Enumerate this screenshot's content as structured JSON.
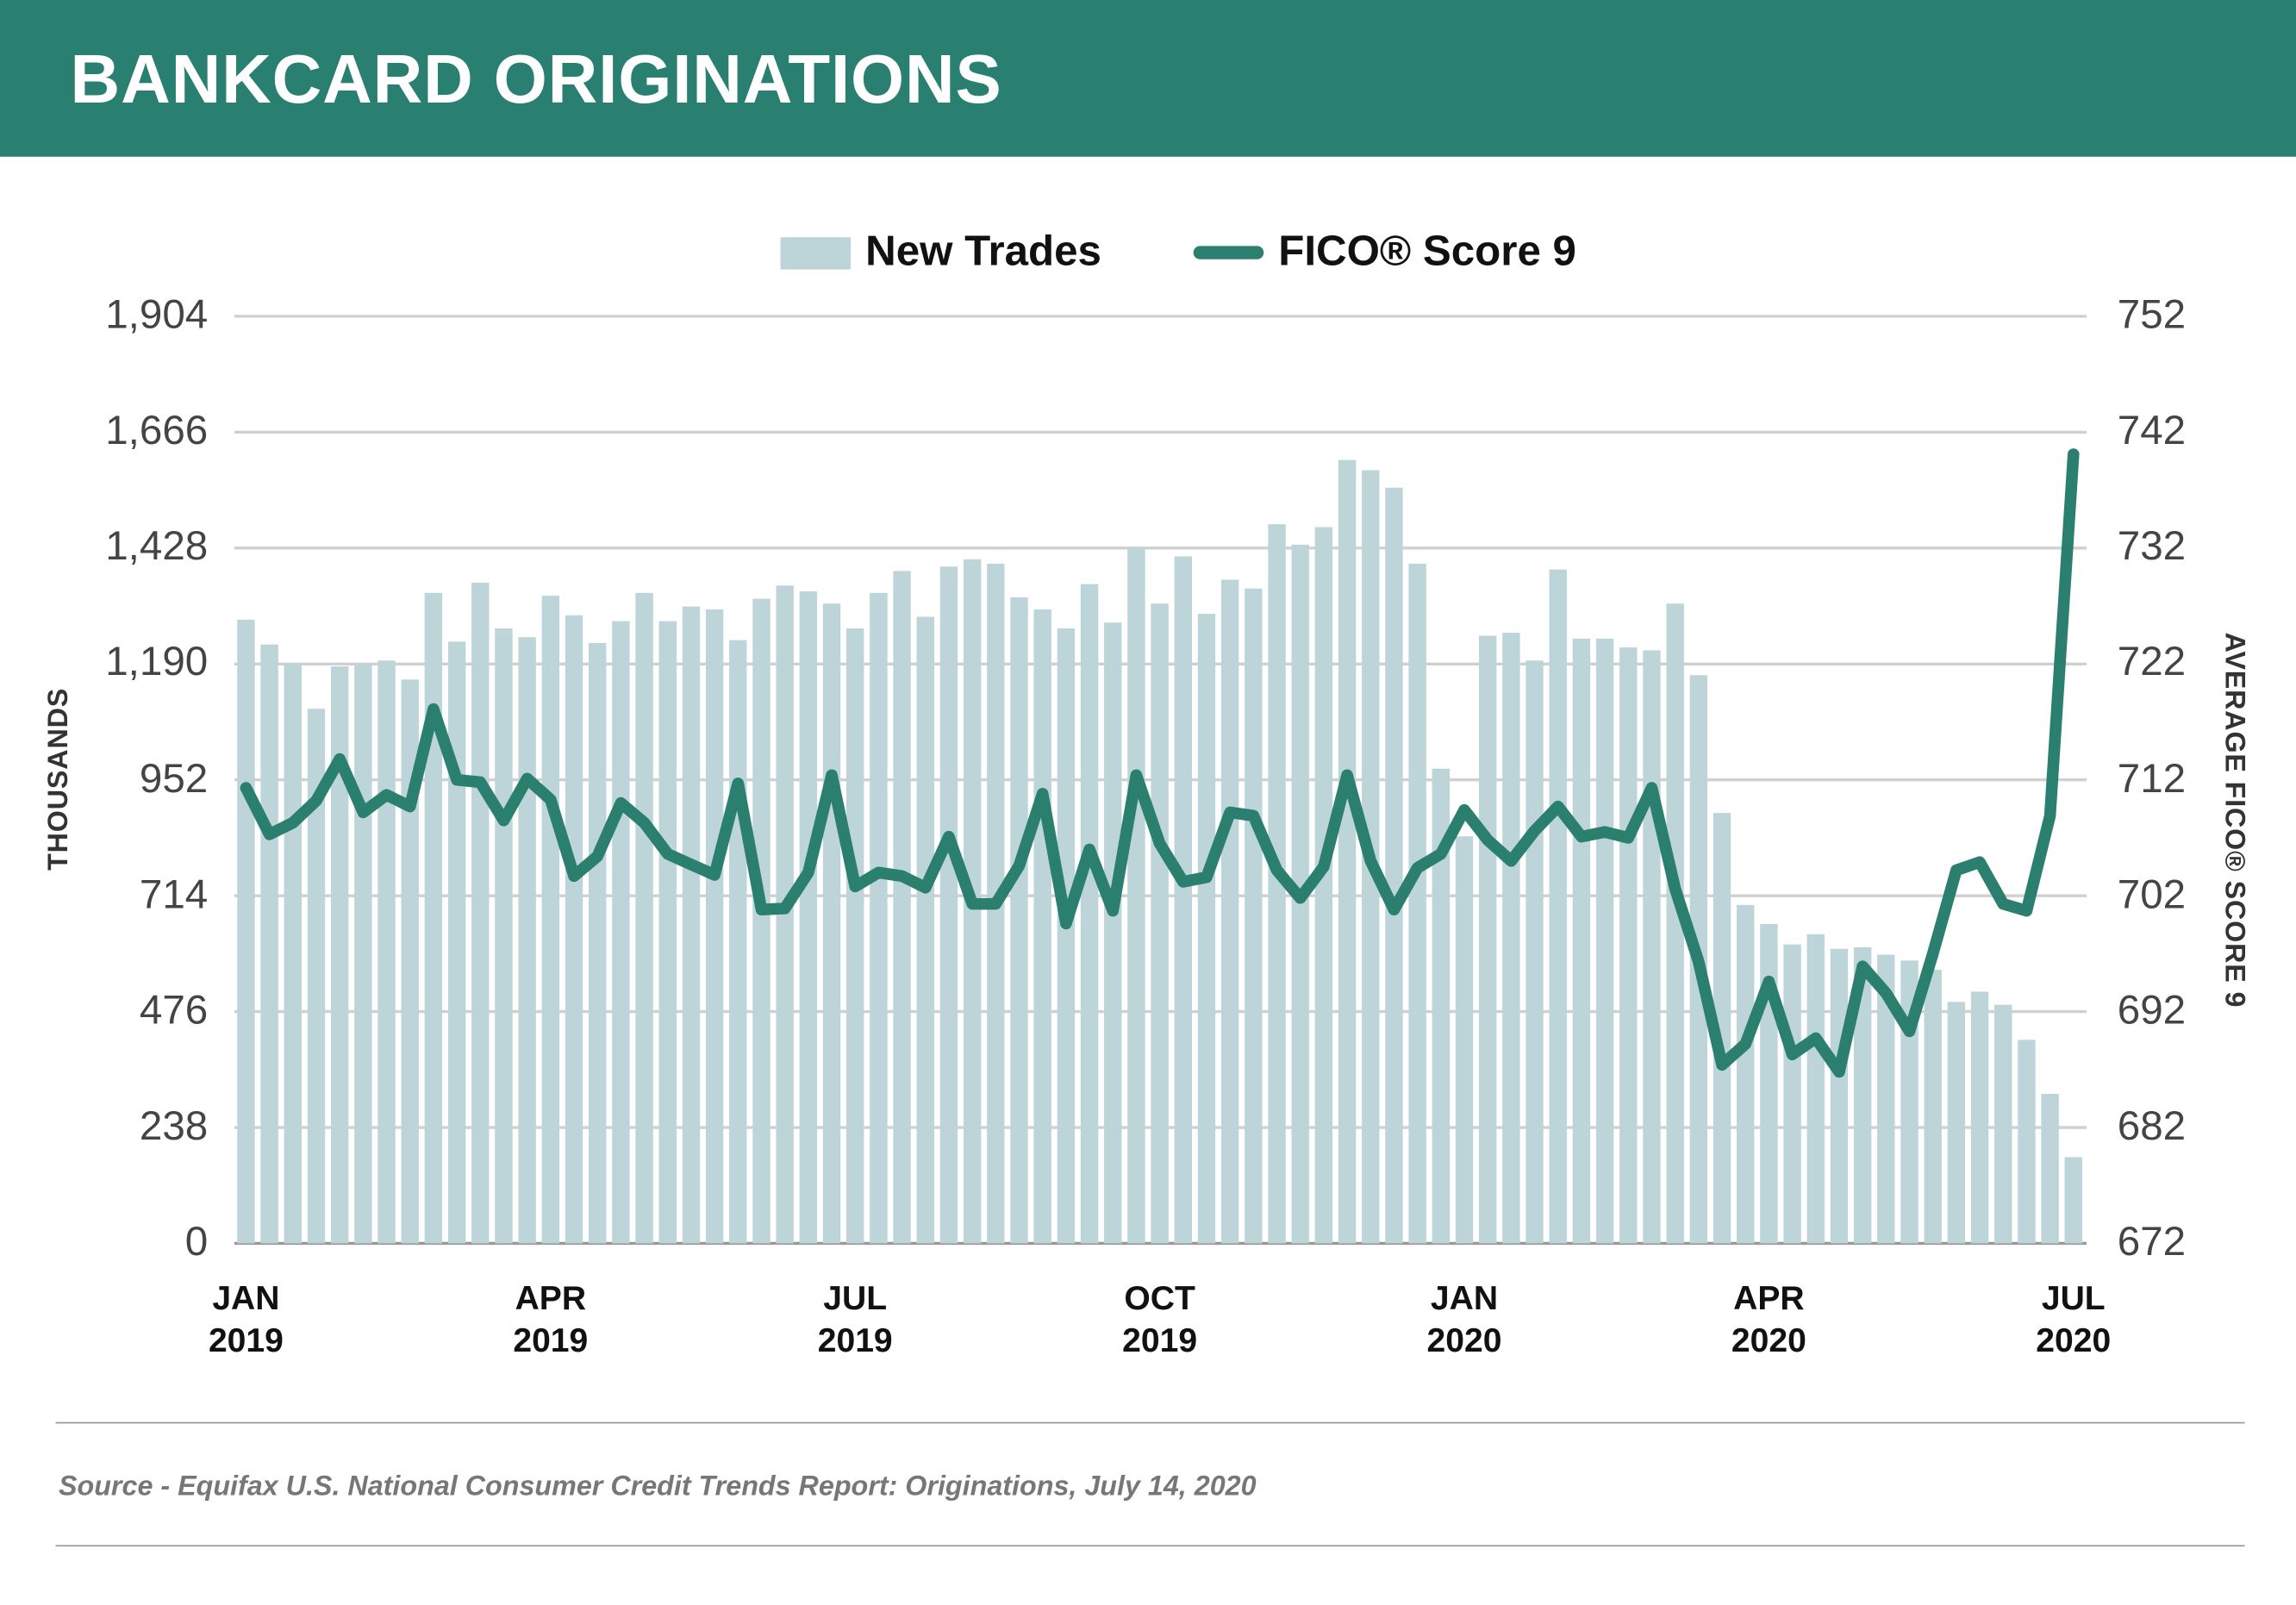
{
  "header": {
    "title": "BANKCARD ORIGINATIONS"
  },
  "footer": {
    "source": "Source - Equifax U.S. National Consumer Credit Trends Report: Originations, July 14, 2020"
  },
  "colors": {
    "header": "#2a8070",
    "bars": "#bdd4d8",
    "line": "#2a7f6f",
    "grid": "#d0d0d0"
  },
  "chart_data": {
    "type": "bar+line",
    "title": "BANKCARD ORIGINATIONS",
    "legend": {
      "placement": "top-center",
      "entries": [
        "New Trades",
        "FICO® Score 9"
      ]
    },
    "ylabel_left": "THOUSANDS",
    "ylabel_right": "AVERAGE FICO® SCORE 9",
    "ylim_left": [
      0,
      1904
    ],
    "ylim_right": [
      672,
      752
    ],
    "yticks_left": [
      "0",
      "238",
      "476",
      "714",
      "952",
      "1,190",
      "1,428",
      "1,666",
      "1,904"
    ],
    "yticks_right": [
      "672",
      "682",
      "692",
      "702",
      "712",
      "722",
      "732",
      "742",
      "752"
    ],
    "xticks": [
      {
        "month": "JAN",
        "year": "2019",
        "index": 0
      },
      {
        "month": "APR",
        "year": "2019",
        "index": 13
      },
      {
        "month": "JUL",
        "year": "2019",
        "index": 26
      },
      {
        "month": "OCT",
        "year": "2019",
        "index": 39
      },
      {
        "month": "JAN",
        "year": "2020",
        "index": 52
      },
      {
        "month": "APR",
        "year": "2020",
        "index": 65
      },
      {
        "month": "JUL",
        "year": "2020",
        "index": 78
      }
    ],
    "grid": true,
    "series": [
      {
        "name": "New Trades",
        "type": "bar",
        "axis": "left",
        "values": [
          1281,
          1230,
          1191,
          1098,
          1185,
          1191,
          1197,
          1158,
          1336,
          1236,
          1357,
          1263,
          1245,
          1330,
          1290,
          1233,
          1278,
          1336,
          1278,
          1308,
          1302,
          1239,
          1324,
          1351,
          1339,
          1314,
          1263,
          1336,
          1381,
          1287,
          1390,
          1405,
          1396,
          1327,
          1302,
          1263,
          1354,
          1275,
          1429,
          1314,
          1411,
          1293,
          1363,
          1345,
          1477,
          1435,
          1471,
          1609,
          1588,
          1552,
          1396,
          975,
          836,
          1248,
          1254,
          1197,
          1384,
          1242,
          1242,
          1224,
          1218,
          1314,
          1167,
          884,
          695,
          656,
          614,
          635,
          605,
          608,
          593,
          581,
          562,
          496,
          517,
          490,
          418,
          307,
          177
        ]
      },
      {
        "name": "FICO® Score 9",
        "type": "line",
        "axis": "right",
        "values": [
          711.3,
          707.3,
          708.3,
          710.2,
          713.8,
          709.2,
          710.7,
          709.7,
          718.1,
          712.0,
          711.8,
          708.5,
          712.1,
          710.3,
          703.7,
          705.4,
          710.0,
          708.3,
          705.6,
          704.7,
          703.8,
          711.7,
          700.8,
          700.9,
          704.0,
          712.4,
          702.8,
          704.0,
          703.7,
          702.7,
          707.1,
          701.3,
          701.3,
          704.6,
          710.8,
          699.6,
          706.0,
          700.7,
          712.4,
          706.5,
          703.2,
          703.6,
          709.2,
          708.9,
          704.2,
          701.8,
          704.5,
          712.4,
          705.0,
          700.8,
          704.4,
          705.6,
          709.4,
          706.8,
          705.0,
          707.6,
          709.7,
          707.1,
          707.5,
          707.0,
          711.3,
          702.6,
          696.3,
          687.4,
          689.2,
          694.6,
          688.3,
          689.7,
          686.8,
          695.9,
          693.6,
          690.3,
          697.0,
          704.2,
          704.9,
          701.3,
          700.7,
          708.9,
          740.1
        ]
      }
    ]
  }
}
